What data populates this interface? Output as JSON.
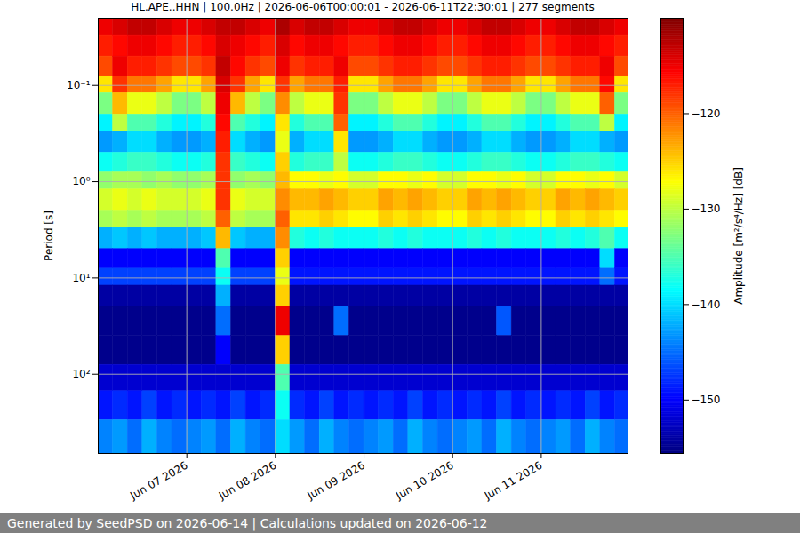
{
  "chart_data": {
    "type": "heatmap",
    "title": "HL.APE..HHN | 100.0Hz | 2026-06-06T00:00:01 - 2026-06-11T22:30:01 | 277 segments",
    "footer": "Generated by SeedPSD on 2026-06-14 | Calculations updated on 2026-06-12",
    "y_label": "Period [s]",
    "colorbar_label": "Amplitude [m²/s⁴/Hz] [dB]",
    "log": "y",
    "grid": true,
    "xlim": [
      "2026-06-06T00:00Z",
      "2026-06-11T23:30Z"
    ],
    "xticks": [
      {
        "value": "2026-06-07T00:00Z",
        "label": "Jun 07 2026"
      },
      {
        "value": "2026-06-08T00:00Z",
        "label": "Jun 08 2026"
      },
      {
        "value": "2026-06-09T00:00Z",
        "label": "Jun 09 2026"
      },
      {
        "value": "2026-06-10T00:00Z",
        "label": "Jun 10 2026"
      },
      {
        "value": "2026-06-11T00:00Z",
        "label": "Jun 11 2026"
      }
    ],
    "ylim": [
      0.02,
      667
    ],
    "yticks": [
      {
        "value": 0.1,
        "label": "10⁻¹"
      },
      {
        "value": 1,
        "label": "10⁰"
      },
      {
        "value": 10,
        "label": "10¹"
      },
      {
        "value": 100,
        "label": "10²"
      }
    ],
    "clim": [
      -155.6,
      -110
    ],
    "cticks": [
      -150,
      -140,
      -130,
      -120
    ],
    "time_edges": [
      "2026-06-06T00:00Z",
      "2026-06-06T04:00Z",
      "2026-06-06T08:00Z",
      "2026-06-06T12:00Z",
      "2026-06-06T16:00Z",
      "2026-06-06T20:00Z",
      "2026-06-07T00:00Z",
      "2026-06-07T04:00Z",
      "2026-06-07T08:00Z",
      "2026-06-07T12:00Z",
      "2026-06-07T16:00Z",
      "2026-06-07T20:00Z",
      "2026-06-08T00:00Z",
      "2026-06-08T04:00Z",
      "2026-06-08T08:00Z",
      "2026-06-08T12:00Z",
      "2026-06-08T16:00Z",
      "2026-06-08T20:00Z",
      "2026-06-09T00:00Z",
      "2026-06-09T04:00Z",
      "2026-06-09T08:00Z",
      "2026-06-09T12:00Z",
      "2026-06-09T16:00Z",
      "2026-06-09T20:00Z",
      "2026-06-10T00:00Z",
      "2026-06-10T04:00Z",
      "2026-06-10T08:00Z",
      "2026-06-10T12:00Z",
      "2026-06-10T16:00Z",
      "2026-06-10T20:00Z",
      "2026-06-11T00:00Z",
      "2026-06-11T04:00Z",
      "2026-06-11T08:00Z",
      "2026-06-11T12:00Z",
      "2026-06-11T16:00Z",
      "2026-06-11T20:00Z",
      "2026-06-11T23:30Z"
    ],
    "period_edges": [
      0.02,
      0.03,
      0.05,
      0.08,
      0.12,
      0.2,
      0.3,
      0.5,
      0.8,
      1.2,
      2,
      3,
      5,
      8,
      12,
      20,
      40,
      80,
      150,
      300,
      667
    ],
    "cells": [
      [
        -115,
        -114,
        -113,
        -113,
        -114,
        -115,
        -115,
        -114,
        -113,
        -113,
        -114,
        -115,
        -112,
        -114,
        -113,
        -113,
        -114,
        -115,
        -115,
        -114,
        -113,
        -113,
        -114,
        -115,
        -115,
        -114,
        -113,
        -113,
        -114,
        -115,
        -115,
        -114,
        -113,
        -113,
        -114,
        -115
      ],
      [
        -117,
        -116,
        -115,
        -115,
        -116,
        -117,
        -117,
        -116,
        -114,
        -115,
        -116,
        -117,
        -114,
        -116,
        -115,
        -115,
        -116,
        -117,
        -117,
        -116,
        -115,
        -115,
        -116,
        -117,
        -117,
        -116,
        -115,
        -115,
        -116,
        -117,
        -117,
        -116,
        -115,
        -115,
        -116,
        -117
      ],
      [
        -119,
        -115,
        -117,
        -117,
        -118,
        -119,
        -119,
        -118,
        -113,
        -116,
        -118,
        -119,
        -115,
        -118,
        -117,
        -117,
        -115,
        -119,
        -119,
        -118,
        -117,
        -117,
        -118,
        -119,
        -119,
        -118,
        -117,
        -117,
        -118,
        -119,
        -119,
        -118,
        -117,
        -117,
        -115,
        -119
      ],
      [
        -126,
        -118,
        -121,
        -121,
        -123,
        -126,
        -126,
        -123,
        -114,
        -118,
        -123,
        -126,
        -118,
        -123,
        -121,
        -121,
        -117,
        -126,
        -126,
        -123,
        -121,
        -121,
        -123,
        -126,
        -126,
        -123,
        -121,
        -121,
        -123,
        -126,
        -126,
        -123,
        -121,
        -121,
        -116,
        -126
      ],
      [
        -133,
        -124,
        -128,
        -128,
        -130,
        -133,
        -133,
        -130,
        -115,
        -124,
        -130,
        -133,
        -122,
        -130,
        -128,
        -128,
        -118,
        -133,
        -133,
        -130,
        -128,
        -128,
        -130,
        -133,
        -133,
        -130,
        -128,
        -128,
        -130,
        -133,
        -133,
        -130,
        -128,
        -128,
        -120,
        -133
      ],
      [
        -139,
        -130,
        -135,
        -135,
        -137,
        -139,
        -139,
        -137,
        -116,
        -135,
        -137,
        -139,
        -126,
        -137,
        -135,
        -135,
        -120,
        -139,
        -139,
        -137,
        -135,
        -135,
        -137,
        -139,
        -139,
        -137,
        -135,
        -135,
        -137,
        -139,
        -139,
        -137,
        -135,
        -135,
        -130,
        -139
      ],
      [
        -143,
        -142,
        -140,
        -140,
        -142,
        -143,
        -143,
        -142,
        -117,
        -140,
        -142,
        -143,
        -128,
        -142,
        -140,
        -140,
        -126,
        -143,
        -143,
        -142,
        -140,
        -140,
        -142,
        -143,
        -143,
        -142,
        -140,
        -140,
        -142,
        -143,
        -143,
        -142,
        -140,
        -140,
        -142,
        -143
      ],
      [
        -138,
        -137,
        -136,
        -136,
        -137,
        -138,
        -138,
        -137,
        -118,
        -136,
        -137,
        -138,
        -125,
        -137,
        -136,
        -136,
        -130,
        -138,
        -138,
        -137,
        -136,
        -136,
        -137,
        -138,
        -138,
        -137,
        -136,
        -136,
        -137,
        -138,
        -138,
        -137,
        -136,
        -136,
        -137,
        -138
      ],
      [
        -132,
        -131,
        -131,
        -132,
        -131,
        -132,
        -132,
        -131,
        -118,
        -132,
        -131,
        -132,
        -124,
        -127,
        -127,
        -128,
        -127,
        -129,
        -129,
        -127,
        -127,
        -128,
        -127,
        -129,
        -129,
        -127,
        -127,
        -128,
        -127,
        -129,
        -129,
        -127,
        -127,
        -128,
        -127,
        -129
      ],
      [
        -129,
        -128,
        -129,
        -128,
        -129,
        -129,
        -129,
        -128,
        -118,
        -128,
        -129,
        -129,
        -122,
        -124,
        -124,
        -123,
        -124,
        -125,
        -125,
        -123,
        -124,
        -123,
        -124,
        -125,
        -125,
        -123,
        -124,
        -123,
        -124,
        -125,
        -125,
        -123,
        -124,
        -123,
        -124,
        -125
      ],
      [
        -131,
        -130,
        -131,
        -130,
        -131,
        -131,
        -131,
        -130,
        -120,
        -130,
        -131,
        -131,
        -120,
        -126,
        -126,
        -125,
        -126,
        -127,
        -127,
        -125,
        -126,
        -125,
        -126,
        -127,
        -127,
        -125,
        -126,
        -125,
        -126,
        -127,
        -127,
        -125,
        -126,
        -125,
        -126,
        -127
      ],
      [
        -142,
        -141,
        -142,
        -141,
        -142,
        -142,
        -142,
        -141,
        -124,
        -141,
        -142,
        -142,
        -122,
        -137,
        -138,
        -137,
        -138,
        -138,
        -138,
        -137,
        -138,
        -137,
        -138,
        -138,
        -138,
        -137,
        -138,
        -137,
        -138,
        -138,
        -138,
        -137,
        -138,
        -137,
        -135,
        -138
      ],
      [
        -150,
        -150,
        -150,
        -150,
        -150,
        -150,
        -150,
        -150,
        -135,
        -150,
        -150,
        -150,
        -125,
        -150,
        -150,
        -150,
        -150,
        -150,
        -150,
        -150,
        -150,
        -150,
        -150,
        -150,
        -150,
        -150,
        -150,
        -150,
        -150,
        -150,
        -150,
        -150,
        -150,
        -150,
        -140,
        -150
      ],
      [
        -147,
        -147,
        -147,
        -147,
        -147,
        -147,
        -147,
        -147,
        -138,
        -147,
        -147,
        -147,
        -128,
        -149,
        -149,
        -149,
        -149,
        -149,
        -149,
        -149,
        -149,
        -149,
        -149,
        -149,
        -149,
        -149,
        -149,
        -149,
        -149,
        -149,
        -149,
        -149,
        -149,
        -149,
        -145,
        -149
      ],
      [
        -154,
        -154,
        -154,
        -154,
        -154,
        -154,
        -154,
        -154,
        -142,
        -154,
        -154,
        -154,
        -125,
        -154,
        -154,
        -154,
        -154,
        -154,
        -154,
        -154,
        -154,
        -154,
        -154,
        -154,
        -154,
        -154,
        -154,
        -154,
        -154,
        -154,
        -154,
        -154,
        -154,
        -154,
        -154,
        -154
      ],
      [
        -155,
        -155,
        -155,
        -155,
        -155,
        -155,
        -155,
        -155,
        -145,
        -155,
        -155,
        -155,
        -115,
        -155,
        -155,
        -155,
        -145,
        -155,
        -155,
        -155,
        -155,
        -155,
        -155,
        -155,
        -155,
        -155,
        -155,
        -146,
        -155,
        -155,
        -155,
        -155,
        -155,
        -155,
        -155,
        -155
      ],
      [
        -155,
        -155,
        -155,
        -155,
        -155,
        -155,
        -155,
        -155,
        -150,
        -155,
        -155,
        -155,
        -125,
        -155,
        -155,
        -155,
        -155,
        -155,
        -155,
        -155,
        -155,
        -155,
        -155,
        -155,
        -155,
        -155,
        -155,
        -155,
        -155,
        -155,
        -155,
        -155,
        -155,
        -155,
        -155,
        -155
      ],
      [
        -152,
        -152,
        -152,
        -152,
        -152,
        -152,
        -152,
        -152,
        -152,
        -152,
        -152,
        -152,
        -135,
        -152,
        -152,
        -152,
        -152,
        -152,
        -152,
        -152,
        -152,
        -152,
        -152,
        -152,
        -152,
        -152,
        -152,
        -152,
        -152,
        -152,
        -152,
        -152,
        -152,
        -152,
        -152,
        -152
      ],
      [
        -149,
        -148,
        -149,
        -147,
        -149,
        -148,
        -149,
        -148,
        -149,
        -147,
        -149,
        -148,
        -138,
        -148,
        -149,
        -147,
        -149,
        -148,
        -149,
        -148,
        -149,
        -147,
        -149,
        -148,
        -149,
        -148,
        -149,
        -147,
        -149,
        -148,
        -149,
        -148,
        -149,
        -147,
        -149,
        -148
      ],
      [
        -144,
        -143,
        -145,
        -142,
        -144,
        -145,
        -144,
        -143,
        -145,
        -142,
        -144,
        -145,
        -140,
        -143,
        -145,
        -142,
        -144,
        -145,
        -144,
        -143,
        -145,
        -142,
        -144,
        -145,
        -144,
        -143,
        -145,
        -142,
        -144,
        -145,
        -144,
        -143,
        -145,
        -142,
        -144,
        -145
      ]
    ]
  }
}
